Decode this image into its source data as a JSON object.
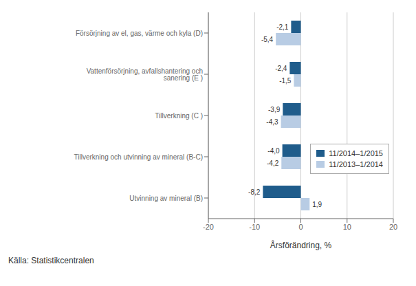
{
  "chart_data": {
    "type": "bar",
    "orientation": "horizontal",
    "categories": [
      "Försörjning av el, gas, värme och kyla (D)",
      "Vattenförsörjning, avfallshantering och sanering (E )",
      "Tillverkning (C )",
      "Tillverkning och utvinning av mineral (B-C)",
      "Utvinning av mineral  (B)"
    ],
    "series": [
      {
        "name": "11/2014–1/2015",
        "color": "#1F5C8B",
        "values": [
          -2.1,
          -2.4,
          -3.9,
          -4.0,
          -8.2
        ],
        "value_labels": [
          "-2,1",
          "-2,4",
          "-3,9",
          "-4,0",
          "-8,2"
        ]
      },
      {
        "name": "11/2013–1/2014",
        "color": "#B8CCE4",
        "values": [
          -5.4,
          -1.5,
          -4.3,
          -4.2,
          1.9
        ],
        "value_labels": [
          "-5,4",
          "-1,5",
          "-4,3",
          "-4,2",
          "1,9"
        ]
      }
    ],
    "xlabel": "Årsförändring, %",
    "xlim": [
      -20,
      20
    ],
    "xticks": [
      -20,
      -10,
      0,
      10,
      20
    ],
    "grid": true,
    "legend": "lower right",
    "data_labels": true,
    "annotations": [
      "Källa: Statistikcentralen"
    ]
  }
}
